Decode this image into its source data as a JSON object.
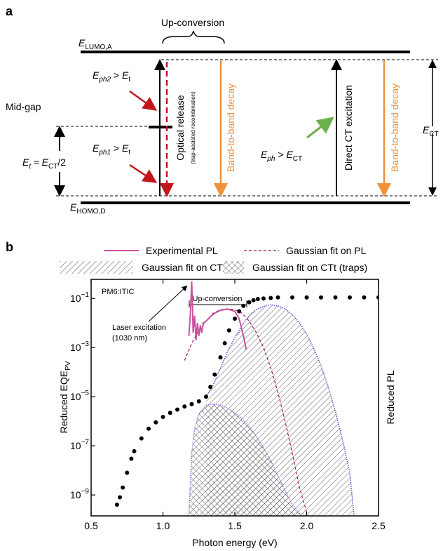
{
  "diagram": {
    "label": "a",
    "up_conversion": "Up-conversion",
    "lumo": [
      "E",
      "LUMO,A"
    ],
    "homo": [
      "E",
      "HOMO,D"
    ],
    "mid_gap": "Mid-gap",
    "trap_energy": [
      "E",
      "t",
      " ≈ ",
      "E",
      "CT",
      "/2"
    ],
    "eph2": [
      "E",
      "ph2",
      " > ",
      "E",
      "t"
    ],
    "eph1": [
      "E",
      "ph1",
      " > ",
      "E",
      "t"
    ],
    "optical_release": "Optical release",
    "trap_assisted": "(trap-assisted recombination)",
    "band_decay_1": "Band-to-band decay",
    "band_decay_2": "Band-to-band decay",
    "direct_ct": "Direct CT excitation",
    "eph": [
      "E",
      "ph",
      " > ",
      "E",
      "CT"
    ],
    "ect": [
      "E",
      "CT"
    ]
  },
  "chart_data": {
    "type": "scatter",
    "label": "b",
    "xlabel": "Photon energy (eV)",
    "ylabel": [
      "Reduced EQE",
      "PV"
    ],
    "y2label": "Reduced PL",
    "log_y": true,
    "legend": "top",
    "xlim": [
      0.5,
      2.5
    ],
    "xticks": [
      0.5,
      {
        "value": 1,
        "label": "1.0"
      },
      1.5,
      {
        "value": 2,
        "label": "2.0"
      },
      2.5
    ],
    "ylim": [
      1.4e-10,
      0.6
    ],
    "yticks": [
      {
        "value": 1e-09,
        "label": [
          "10",
          "−9"
        ]
      },
      {
        "value": 1e-07,
        "label": [
          "10",
          "−7"
        ]
      },
      {
        "value": 1e-05,
        "label": [
          "10",
          "−5"
        ]
      },
      {
        "value": 0.001,
        "label": [
          "10",
          "−3"
        ]
      },
      {
        "value": 0.1,
        "label": [
          "10",
          "−1"
        ]
      }
    ],
    "annotations": {
      "sample": "PM6:ITIC",
      "laser": [
        "Laser excitation",
        "(1030 nm)"
      ],
      "up_conversion": "Up-conversion"
    },
    "series": [
      {
        "name": "Experimental PL",
        "color": "#c9529d",
        "style": "line",
        "x": [
          1.18,
          1.19,
          1.2,
          1.205,
          1.21,
          1.22,
          1.23,
          1.24,
          1.25,
          1.26,
          1.27,
          1.28,
          1.3,
          1.33,
          1.36,
          1.4,
          1.45,
          1.5,
          1.53,
          1.56,
          1.58
        ],
        "values": [
          0.003,
          0.02,
          0.5,
          0.05,
          0.004,
          0.02,
          0.002,
          0.01,
          0.003,
          0.008,
          0.004,
          0.01,
          0.012,
          0.018,
          0.025,
          0.033,
          0.037,
          0.03,
          0.015,
          0.003,
          0.0008
        ]
      },
      {
        "name": "Gaussian fit on PL",
        "color": "#a0195a",
        "style": "dashed",
        "x": [
          1.15,
          1.2,
          1.25,
          1.3,
          1.35,
          1.4,
          1.45,
          1.5,
          1.55,
          1.6,
          1.65,
          1.7,
          1.75,
          1.8,
          1.85,
          1.9,
          1.95,
          2.0
        ],
        "values": [
          0.0003,
          0.0015,
          0.005,
          0.012,
          0.025,
          0.035,
          0.038,
          0.035,
          0.025,
          0.012,
          0.004,
          0.001,
          0.00015,
          1.5e-05,
          1e-06,
          5e-08,
          2e-09,
          2e-10
        ]
      },
      {
        "name": "Gaussian fit on CT",
        "color": "#5b55c8",
        "style": "hatch",
        "x": [
          1.3,
          1.35,
          1.4,
          1.45,
          1.5,
          1.55,
          1.6,
          1.65,
          1.7,
          1.75,
          1.8,
          1.85,
          1.9,
          1.95,
          2.0,
          2.05,
          2.1,
          2.15,
          2.2,
          2.25,
          2.3,
          2.33
        ],
        "values": [
          1e-05,
          3e-05,
          0.00015,
          0.0007,
          0.0025,
          0.008,
          0.02,
          0.035,
          0.048,
          0.055,
          0.05,
          0.038,
          0.022,
          0.01,
          0.0035,
          0.0009,
          0.00018,
          2.5e-05,
          2.5e-06,
          1.8e-07,
          8e-09,
          1.4e-10
        ]
      },
      {
        "name": "Gaussian fit on CTt (traps)",
        "color": "#a070d8",
        "style": "crosshatch",
        "x": [
          1.18,
          1.2,
          1.22,
          1.25,
          1.3,
          1.35,
          1.4,
          1.45,
          1.5,
          1.55,
          1.6,
          1.65,
          1.7,
          1.75,
          1.8,
          1.85,
          1.9,
          1.95,
          2.0
        ],
        "values": [
          1.4e-10,
          5e-08,
          5e-07,
          2e-06,
          4.5e-06,
          5e-06,
          4.5e-06,
          3.5e-06,
          2.2e-06,
          1.3e-06,
          6e-07,
          2.5e-07,
          8e-08,
          2.5e-08,
          6e-09,
          1.5e-09,
          4e-10,
          1.8e-10,
          1.4e-10
        ]
      },
      {
        "color": "#000000",
        "style": "dots",
        "x": [
          0.68,
          0.7,
          0.72,
          0.75,
          0.78,
          0.8,
          0.85,
          0.9,
          0.95,
          1.0,
          1.05,
          1.1,
          1.15,
          1.2,
          1.25,
          1.3,
          1.33,
          1.36,
          1.4,
          1.43,
          1.46,
          1.5,
          1.53,
          1.56,
          1.6,
          1.63,
          1.66,
          1.7,
          1.75,
          1.8,
          1.9,
          2.0,
          2.1,
          2.2,
          2.3,
          2.4,
          2.5
        ],
        "values": [
          4e-10,
          8e-10,
          2e-09,
          8e-09,
          3e-08,
          6e-08,
          2e-07,
          5e-07,
          9e-07,
          1.5e-06,
          2.2e-06,
          3e-06,
          4e-06,
          5e-06,
          6.5e-06,
          1e-05,
          2.5e-05,
          8e-05,
          0.0004,
          0.0015,
          0.005,
          0.015,
          0.03,
          0.05,
          0.07,
          0.085,
          0.095,
          0.1,
          0.105,
          0.11,
          0.11,
          0.11,
          0.11,
          0.11,
          0.11,
          0.11,
          0.11
        ]
      }
    ]
  }
}
